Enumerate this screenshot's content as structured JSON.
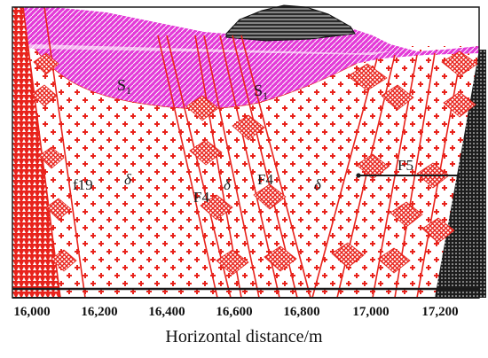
{
  "diagram": {
    "xaxis": {
      "title": "Horizontal distance/m",
      "ticks": [
        "16,000",
        "16,200",
        "16,400",
        "16,600",
        "16,800",
        "17,000",
        "17,200"
      ]
    },
    "labels": {
      "s1_left_main": "S",
      "s1_left_sub": "1",
      "s1_right_main": "S",
      "s1_right_sub": "1",
      "f19": "f19",
      "f4_left": "F4",
      "f4_right": "F4",
      "f5": "F5",
      "delta_1": "δ",
      "delta_2": "δ",
      "delta_3": "δ"
    },
    "colors": {
      "granite_red": "#e8231c",
      "overburden_magenta": "#e33ad8",
      "fill_dark": "#222222",
      "background": "#ffffff"
    }
  }
}
